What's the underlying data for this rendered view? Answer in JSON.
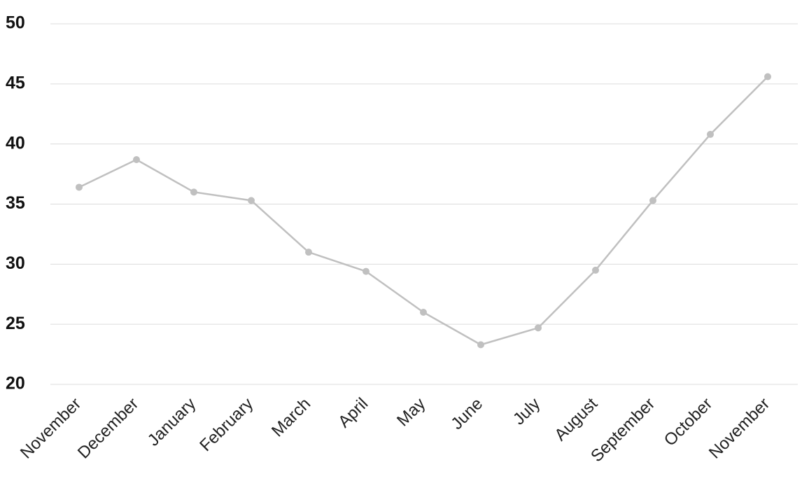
{
  "chart_data": {
    "type": "line",
    "categories": [
      "November",
      "December",
      "January",
      "February",
      "March",
      "April",
      "May",
      "June",
      "July",
      "August",
      "September",
      "October",
      "November"
    ],
    "values": [
      36.4,
      38.7,
      36.0,
      35.3,
      31.0,
      29.4,
      26.0,
      23.3,
      24.7,
      29.5,
      35.3,
      40.8,
      45.6
    ],
    "color": "#c0c0c0",
    "ylim": [
      20,
      50
    ],
    "yticks": [
      20,
      25,
      30,
      35,
      40,
      45,
      50
    ],
    "grid": true
  }
}
